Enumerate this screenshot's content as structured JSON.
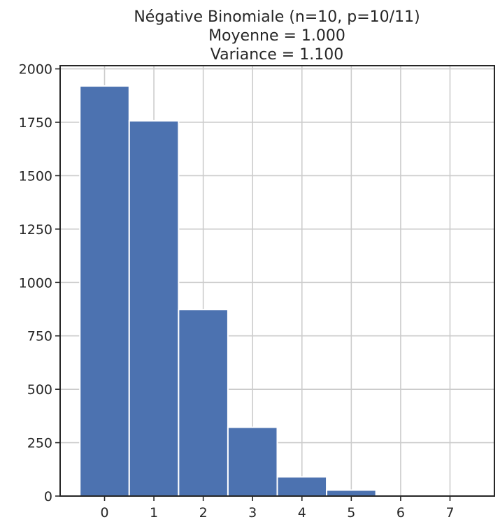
{
  "chart_data": {
    "type": "bar",
    "title_lines": [
      "Négative Binomiale (n=10, p=10/11)",
      "Moyenne =  1.000",
      "Variance =  1.100"
    ],
    "xlabel": "",
    "ylabel": "",
    "categories": [
      0,
      1,
      2,
      3,
      4,
      5
    ],
    "values": [
      1920,
      1757,
      873,
      322,
      90,
      28
    ],
    "bar_width": 1,
    "xlim": [
      -0.9,
      7.9
    ],
    "ylim": [
      0,
      2015
    ],
    "x_ticks": [
      0,
      1,
      2,
      3,
      4,
      5,
      6,
      7
    ],
    "y_ticks": [
      0,
      250,
      500,
      750,
      1000,
      1250,
      1500,
      1750,
      2000
    ],
    "grid": true,
    "bar_color": "#4c72b0",
    "grid_color": "#cccccc",
    "axis_color": "#262626"
  }
}
